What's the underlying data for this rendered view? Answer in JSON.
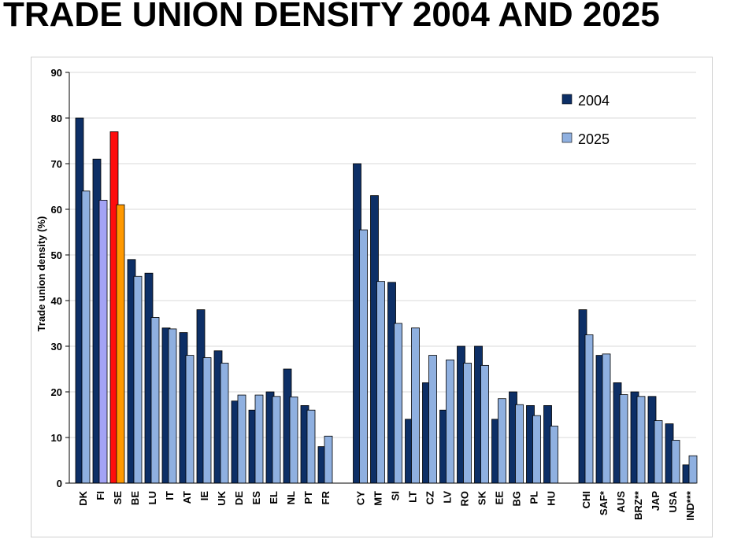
{
  "title": "TRADE UNION DENSITY 2004 AND 2025",
  "colors": {
    "s2004": "#0d2f66",
    "s2025": "#8fb0e0",
    "grid": "#d9d9d9"
  },
  "chart_data": {
    "type": "bar",
    "ylabel": "Trade union density (%)",
    "xlabel": "",
    "ylim": [
      0,
      90
    ],
    "yticks": [
      0,
      10,
      20,
      30,
      40,
      50,
      60,
      70,
      80,
      90
    ],
    "grid": true,
    "legend_position": "top-right",
    "categories": [
      "DK",
      "FI",
      "SE",
      "BE",
      "LU",
      "IT",
      "AT",
      "IE",
      "UK",
      "DE",
      "ES",
      "EL",
      "NL",
      "PT",
      "FR",
      "CY",
      "MT",
      "SI",
      "LT",
      "CZ",
      "LV",
      "RO",
      "SK",
      "EE",
      "BG",
      "PL",
      "HU",
      "CHI",
      "SAF*",
      "AUS",
      "BRZ**",
      "JAP",
      "USA",
      "IND***"
    ],
    "groups": [
      15,
      12,
      7
    ],
    "series": [
      {
        "name": "2004",
        "values": [
          80,
          71,
          77,
          49,
          46,
          34,
          33,
          38,
          29,
          18,
          16,
          20,
          25,
          17,
          8,
          70,
          63,
          44,
          14,
          22,
          16,
          30,
          30,
          14,
          20,
          17,
          17,
          38,
          28,
          22,
          20,
          19,
          13,
          4
        ]
      },
      {
        "name": "2025",
        "values": [
          64,
          62,
          61,
          45.3,
          36.3,
          33.8,
          28,
          27.5,
          26.3,
          19.3,
          19.3,
          19,
          18.9,
          16,
          10.3,
          55.5,
          44.2,
          35,
          34,
          28,
          27,
          26.3,
          25.8,
          18.5,
          17.2,
          14.8,
          12.5,
          32.5,
          28.3,
          19.4,
          19,
          13.7,
          9.4,
          6
        ]
      }
    ],
    "highlight": [
      {
        "category": "FI",
        "series": "2025",
        "color": "#a3a3f5"
      },
      {
        "category": "SE",
        "series": "2004",
        "color": "#ff0d0d"
      },
      {
        "category": "SE",
        "series": "2025",
        "color": "#ff9900"
      }
    ]
  }
}
